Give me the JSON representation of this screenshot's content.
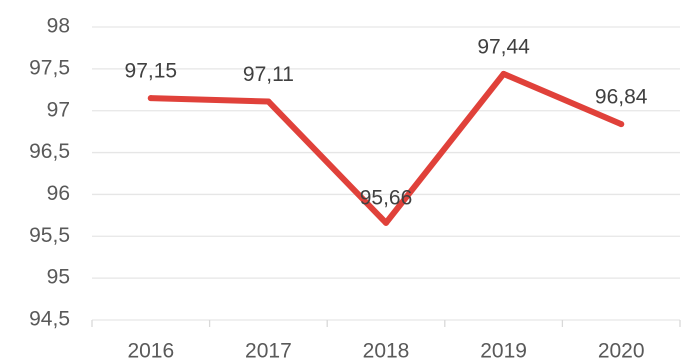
{
  "chart_data": {
    "type": "line",
    "categories": [
      "2016",
      "2017",
      "2018",
      "2019",
      "2020"
    ],
    "series": [
      {
        "values": [
          97.15,
          97.11,
          95.66,
          97.44,
          96.84
        ],
        "color": "#e0413a"
      }
    ],
    "data_labels": [
      "97,15",
      "97,11",
      "95,66",
      "97,44",
      "96,84"
    ],
    "ylim": [
      94.5,
      98
    ],
    "yticks": [
      {
        "value": 98,
        "label": "98"
      },
      {
        "value": 97.5,
        "label": "97,5"
      },
      {
        "value": 97,
        "label": "97"
      },
      {
        "value": 96.5,
        "label": "96,5"
      },
      {
        "value": 96,
        "label": "96"
      },
      {
        "value": 95.5,
        "label": "95,5"
      },
      {
        "value": 95,
        "label": "95"
      },
      {
        "value": 94.5,
        "label": "94,5"
      }
    ],
    "grid": true,
    "legend": "none",
    "title": "",
    "xlabel": "",
    "ylabel": ""
  }
}
